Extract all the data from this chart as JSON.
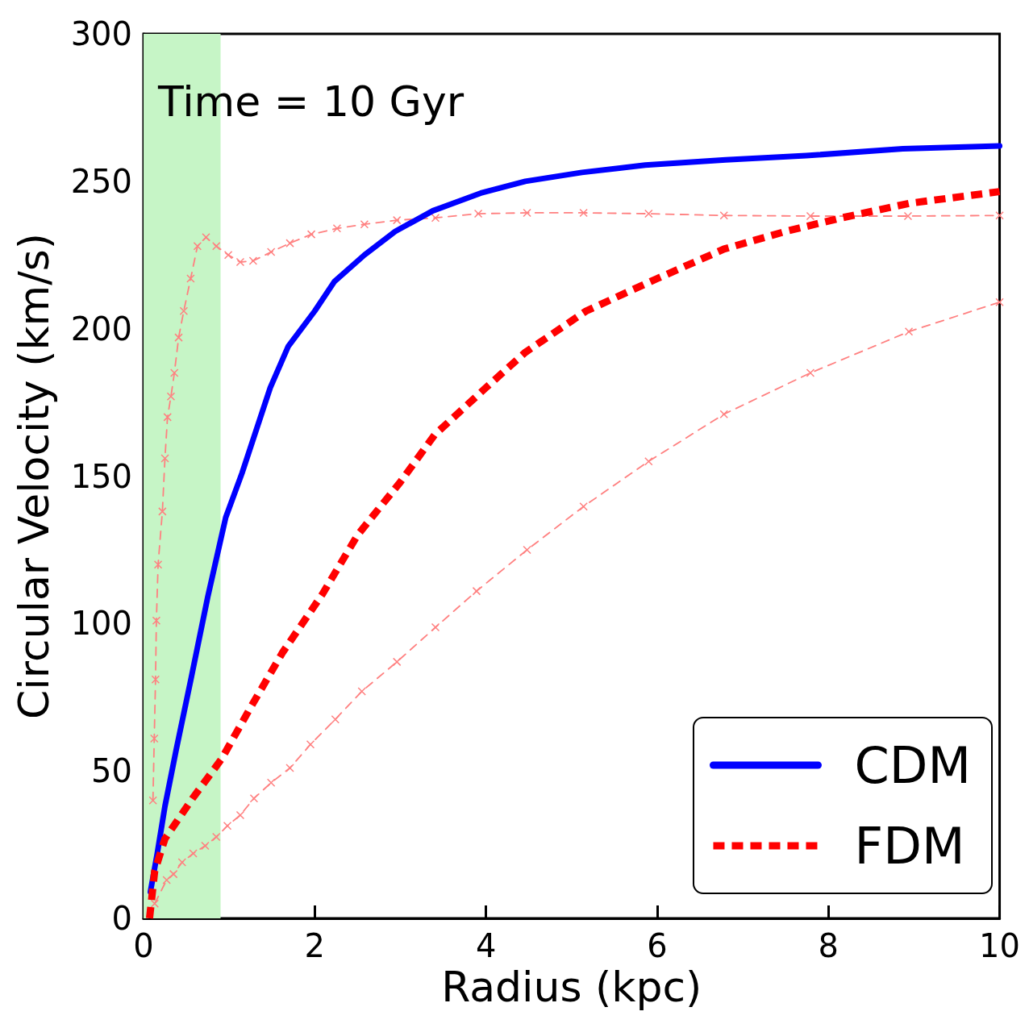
{
  "chart_data": {
    "type": "line",
    "xlabel": "Radius (kpc)",
    "ylabel": "Circular Velocity (km/s)",
    "annotations": [
      "Time = 10 Gyr"
    ],
    "xlim": [
      0,
      10
    ],
    "xticks": [
      0,
      2,
      4,
      6,
      8,
      10
    ],
    "ylim": [
      0,
      300
    ],
    "yticks": [
      0,
      50,
      100,
      150,
      200,
      250,
      300
    ],
    "grid": false,
    "legend": "bottom right",
    "bands": [
      {
        "axis": "x",
        "from": 0,
        "to": 0.9,
        "color": "#c6f5c6"
      }
    ],
    "series": [
      {
        "color": "#ff8080",
        "marker": "cross",
        "line_style": "dashed",
        "x": [
          0.11,
          0.125,
          0.14,
          0.15,
          0.17,
          0.22,
          0.25,
          0.28,
          0.32,
          0.36,
          0.41,
          0.47,
          0.55,
          0.63,
          0.73,
          0.85,
          0.99,
          1.13,
          1.28,
          1.49,
          1.71,
          1.96,
          2.26,
          2.58,
          2.96,
          3.41,
          3.91,
          4.48,
          5.14,
          5.9,
          6.78,
          7.79,
          8.93,
          10
        ],
        "values": [
          40,
          61,
          81,
          101,
          120,
          138,
          156,
          170,
          177,
          185,
          197,
          206,
          217,
          228,
          231,
          228,
          225,
          222.6,
          223,
          226,
          229,
          232,
          234,
          235.4,
          236.8,
          237.6,
          239,
          239.3,
          239.3,
          239,
          238.4,
          238.2,
          238.2,
          238.4
        ]
      },
      {
        "color": "#ff8080",
        "marker": "cross",
        "line_style": "dashed",
        "x": [
          0.13,
          0.27,
          0.35,
          0.45,
          0.58,
          0.72,
          0.85,
          0.98,
          1.13,
          1.29,
          1.49,
          1.71,
          1.95,
          2.24,
          2.55,
          2.96,
          3.41,
          3.89,
          4.48,
          5.14,
          5.9,
          6.78,
          7.79,
          8.94,
          10
        ],
        "values": [
          5,
          13,
          15,
          19,
          22,
          24.6,
          27.6,
          31.4,
          35,
          40.7,
          46,
          51,
          59,
          67.5,
          77,
          87,
          98.7,
          111,
          125,
          139.7,
          155,
          171,
          185,
          199,
          209
        ]
      },
      {
        "name": "CDM",
        "color": "#0000ff",
        "marker": "none",
        "line_style": "solid",
        "x": [
          0.08,
          0.16,
          0.25,
          0.38,
          0.56,
          0.75,
          0.96,
          1.15,
          1.48,
          1.69,
          2.0,
          2.23,
          2.58,
          2.94,
          3.38,
          3.94,
          4.46,
          5.12,
          5.86,
          6.8,
          7.74,
          8.87,
          10
        ],
        "values": [
          9,
          22,
          38,
          57,
          82,
          109,
          136,
          151,
          180,
          194,
          206,
          216,
          225,
          233,
          240,
          246,
          250,
          253,
          255.5,
          257.3,
          258.7,
          261,
          262
        ]
      },
      {
        "name": "FDM",
        "color": "#ff0000",
        "marker": "none",
        "line_style": "dotted",
        "x": [
          0.07,
          0.13,
          0.25,
          0.58,
          0.91,
          1.24,
          1.62,
          2.09,
          2.5,
          3.0,
          3.4,
          4.0,
          4.46,
          5.17,
          6.0,
          6.78,
          7.5,
          8.14,
          8.94,
          10
        ],
        "values": [
          0,
          16,
          27,
          41,
          54,
          71,
          90,
          110,
          130,
          148,
          164,
          180,
          192,
          206,
          217,
          227,
          233,
          237.5,
          242.5,
          246.5
        ]
      }
    ]
  }
}
